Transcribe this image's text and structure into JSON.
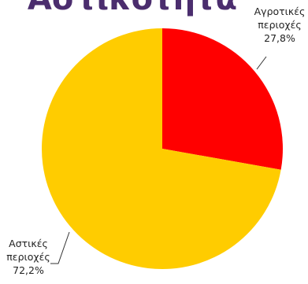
{
  "chart_data": {
    "type": "pie",
    "title": "Αστικότητα",
    "categories": [
      "Αγροτικές περιοχές",
      "Αστικές περιοχές"
    ],
    "values": [
      27.8,
      72.2
    ],
    "unit": "%",
    "colors": [
      "#ff0000",
      "#ffcc00"
    ],
    "value_labels": [
      "27,8%",
      "72,2%"
    ],
    "label_lines": [
      [
        "Αγροτικές",
        "περιοχές"
      ],
      [
        "Αστικές",
        "περιοχές"
      ]
    ],
    "legend": "none"
  }
}
